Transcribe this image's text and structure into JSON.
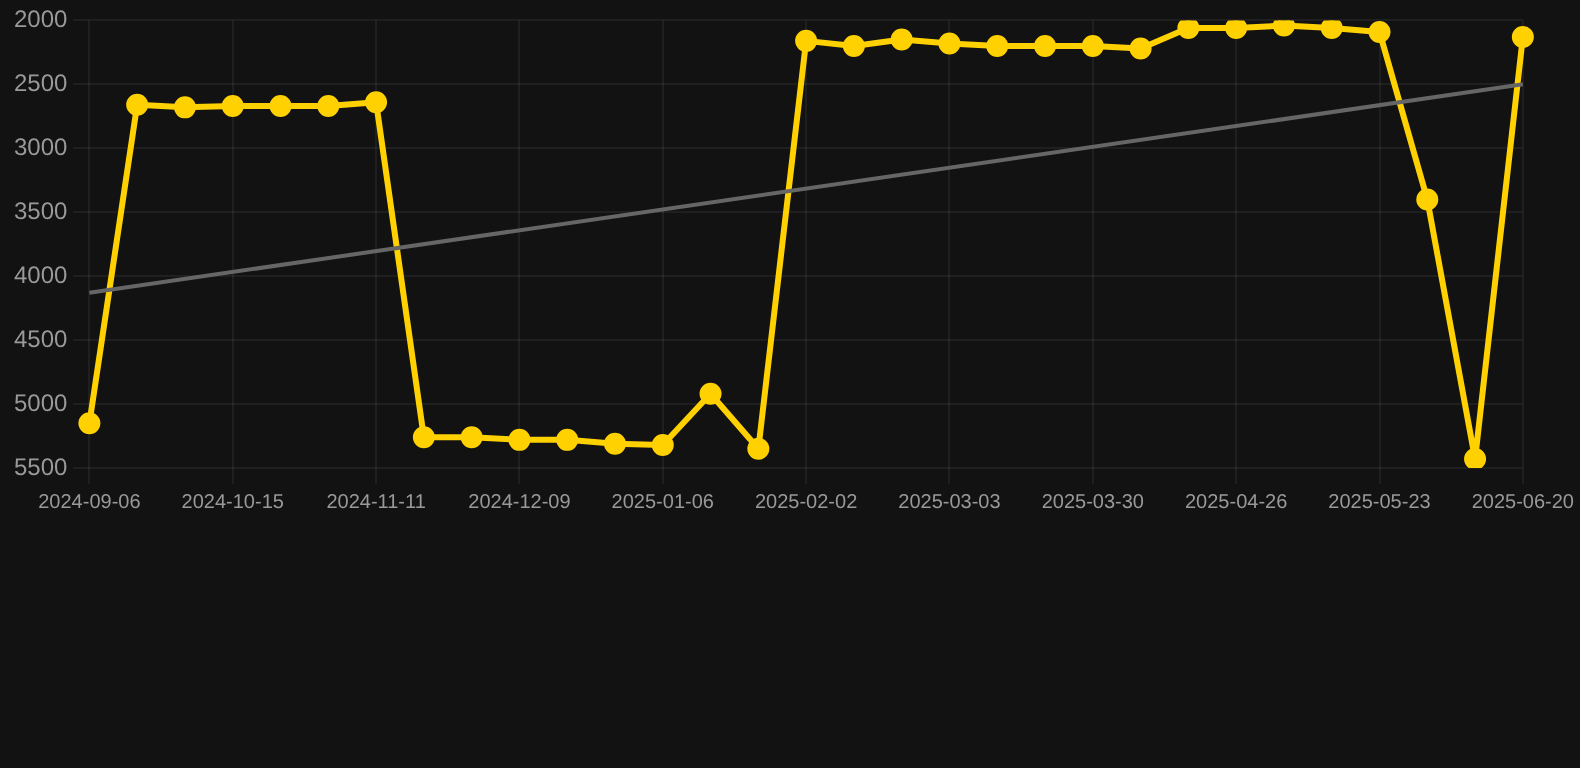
{
  "chart_data": {
    "type": "line",
    "categories": [
      "2024-09-06",
      null,
      null,
      "2024-10-15",
      null,
      null,
      "2024-11-11",
      null,
      null,
      "2024-12-09",
      null,
      null,
      "2025-01-06",
      null,
      null,
      "2025-02-02",
      null,
      null,
      "2025-03-03",
      null,
      null,
      "2025-03-30",
      null,
      null,
      "2025-04-26",
      null,
      null,
      "2025-05-23",
      null,
      null,
      "2025-06-20"
    ],
    "series": [
      {
        "color": "#ffd100",
        "marker": "circle",
        "values": [
          5150,
          2660,
          2680,
          2670,
          2670,
          2670,
          2640,
          5260,
          5260,
          5280,
          5280,
          5310,
          5320,
          4920,
          5350,
          2160,
          2200,
          2150,
          2180,
          2200,
          2200,
          2200,
          2220,
          2060,
          2060,
          2040,
          2060,
          2090,
          3400,
          5430,
          2130
        ]
      },
      {
        "color": "#666666",
        "marker": "none",
        "values": [
          4130,
          null,
          null,
          null,
          null,
          null,
          null,
          null,
          null,
          null,
          null,
          null,
          null,
          null,
          null,
          null,
          null,
          null,
          null,
          null,
          null,
          null,
          null,
          null,
          null,
          null,
          null,
          null,
          null,
          null,
          2500
        ]
      }
    ],
    "ylim": [
      5500,
      2000
    ],
    "yticks": [
      2000,
      2500,
      3000,
      3500,
      4000,
      4500,
      5000,
      5500
    ],
    "grid": true
  }
}
